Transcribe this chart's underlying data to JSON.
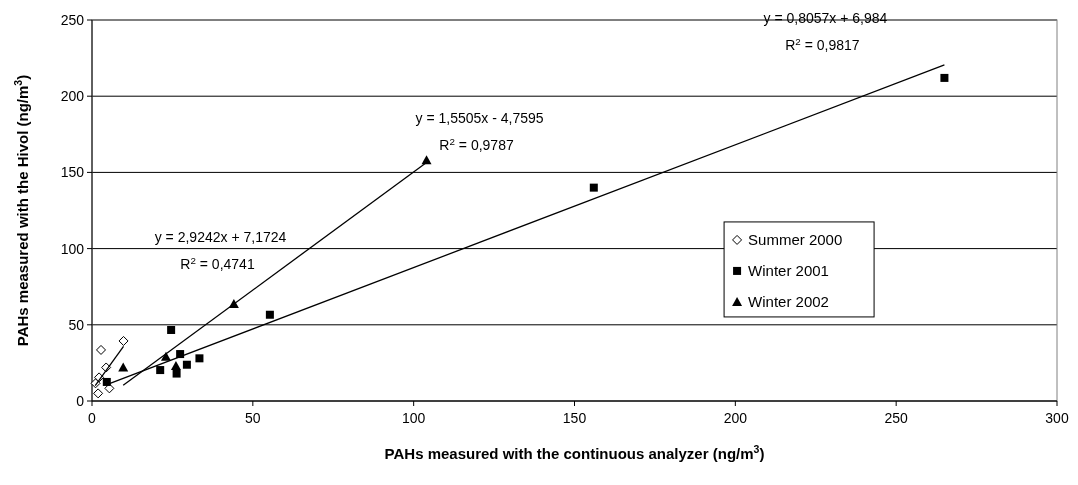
{
  "chart_data": {
    "type": "scatter",
    "xlabel": "PAHs measured with the continuous analyzer (ng/m$^{3}$)",
    "ylabel": "PAHs measured with the Hivol (ng/m$^{3}$)",
    "xlim": [
      0,
      300
    ],
    "ylim": [
      0,
      250
    ],
    "xticks": [
      0,
      50,
      100,
      150,
      200,
      250,
      300
    ],
    "yticks": [
      0,
      50,
      100,
      150,
      200,
      250
    ],
    "grid": "y",
    "legend": "right",
    "series": [
      {
        "name": "Summer 2000",
        "color": "#000000",
        "marker": "diamond",
        "x": [
          2.8,
          9.8,
          4.4,
          2.2,
          1.1,
          1.9,
          5.4
        ],
        "values": [
          33.5,
          39.4,
          22,
          15.5,
          11.6,
          5,
          8.3
        ]
      },
      {
        "name": "Winter 2001",
        "color": "#000000",
        "marker": "square",
        "x": [
          24.6,
          27.4,
          21.2,
          26.3,
          29.5,
          33.4,
          4.6,
          55.3,
          156,
          265
        ],
        "values": [
          46.6,
          30.8,
          20.3,
          18,
          23.8,
          28,
          12.5,
          56.6,
          140,
          212
        ]
      },
      {
        "name": "Winter 2002",
        "color": "#000000",
        "marker": "triangle",
        "x": [
          9.7,
          23,
          26.1,
          44.1,
          104
        ],
        "values": [
          22,
          29,
          23,
          63.6,
          158
        ]
      },
      {
        "type": "line",
        "color": "#000000",
        "marker": "none",
        "x": [
          1,
          9.8
        ],
        "values": [
          10.1,
          35.8
        ]
      },
      {
        "type": "line",
        "color": "#000000",
        "marker": "none",
        "x": [
          4.6,
          265
        ],
        "values": [
          10.7,
          220.5
        ]
      },
      {
        "type": "line",
        "color": "#000000",
        "marker": "none",
        "x": [
          9.7,
          104
        ],
        "values": [
          10.3,
          156.5
        ]
      }
    ],
    "annotations": [
      "y = 2,9242x + 7,1724",
      "R$^{2}$ = 0,4741",
      "y = 0,8057x + 6,984",
      "R$^{2}$ = 0,9817",
      "y = 1,5505x - 4,7595",
      "R$^{2}$ = 0,9787"
    ]
  }
}
